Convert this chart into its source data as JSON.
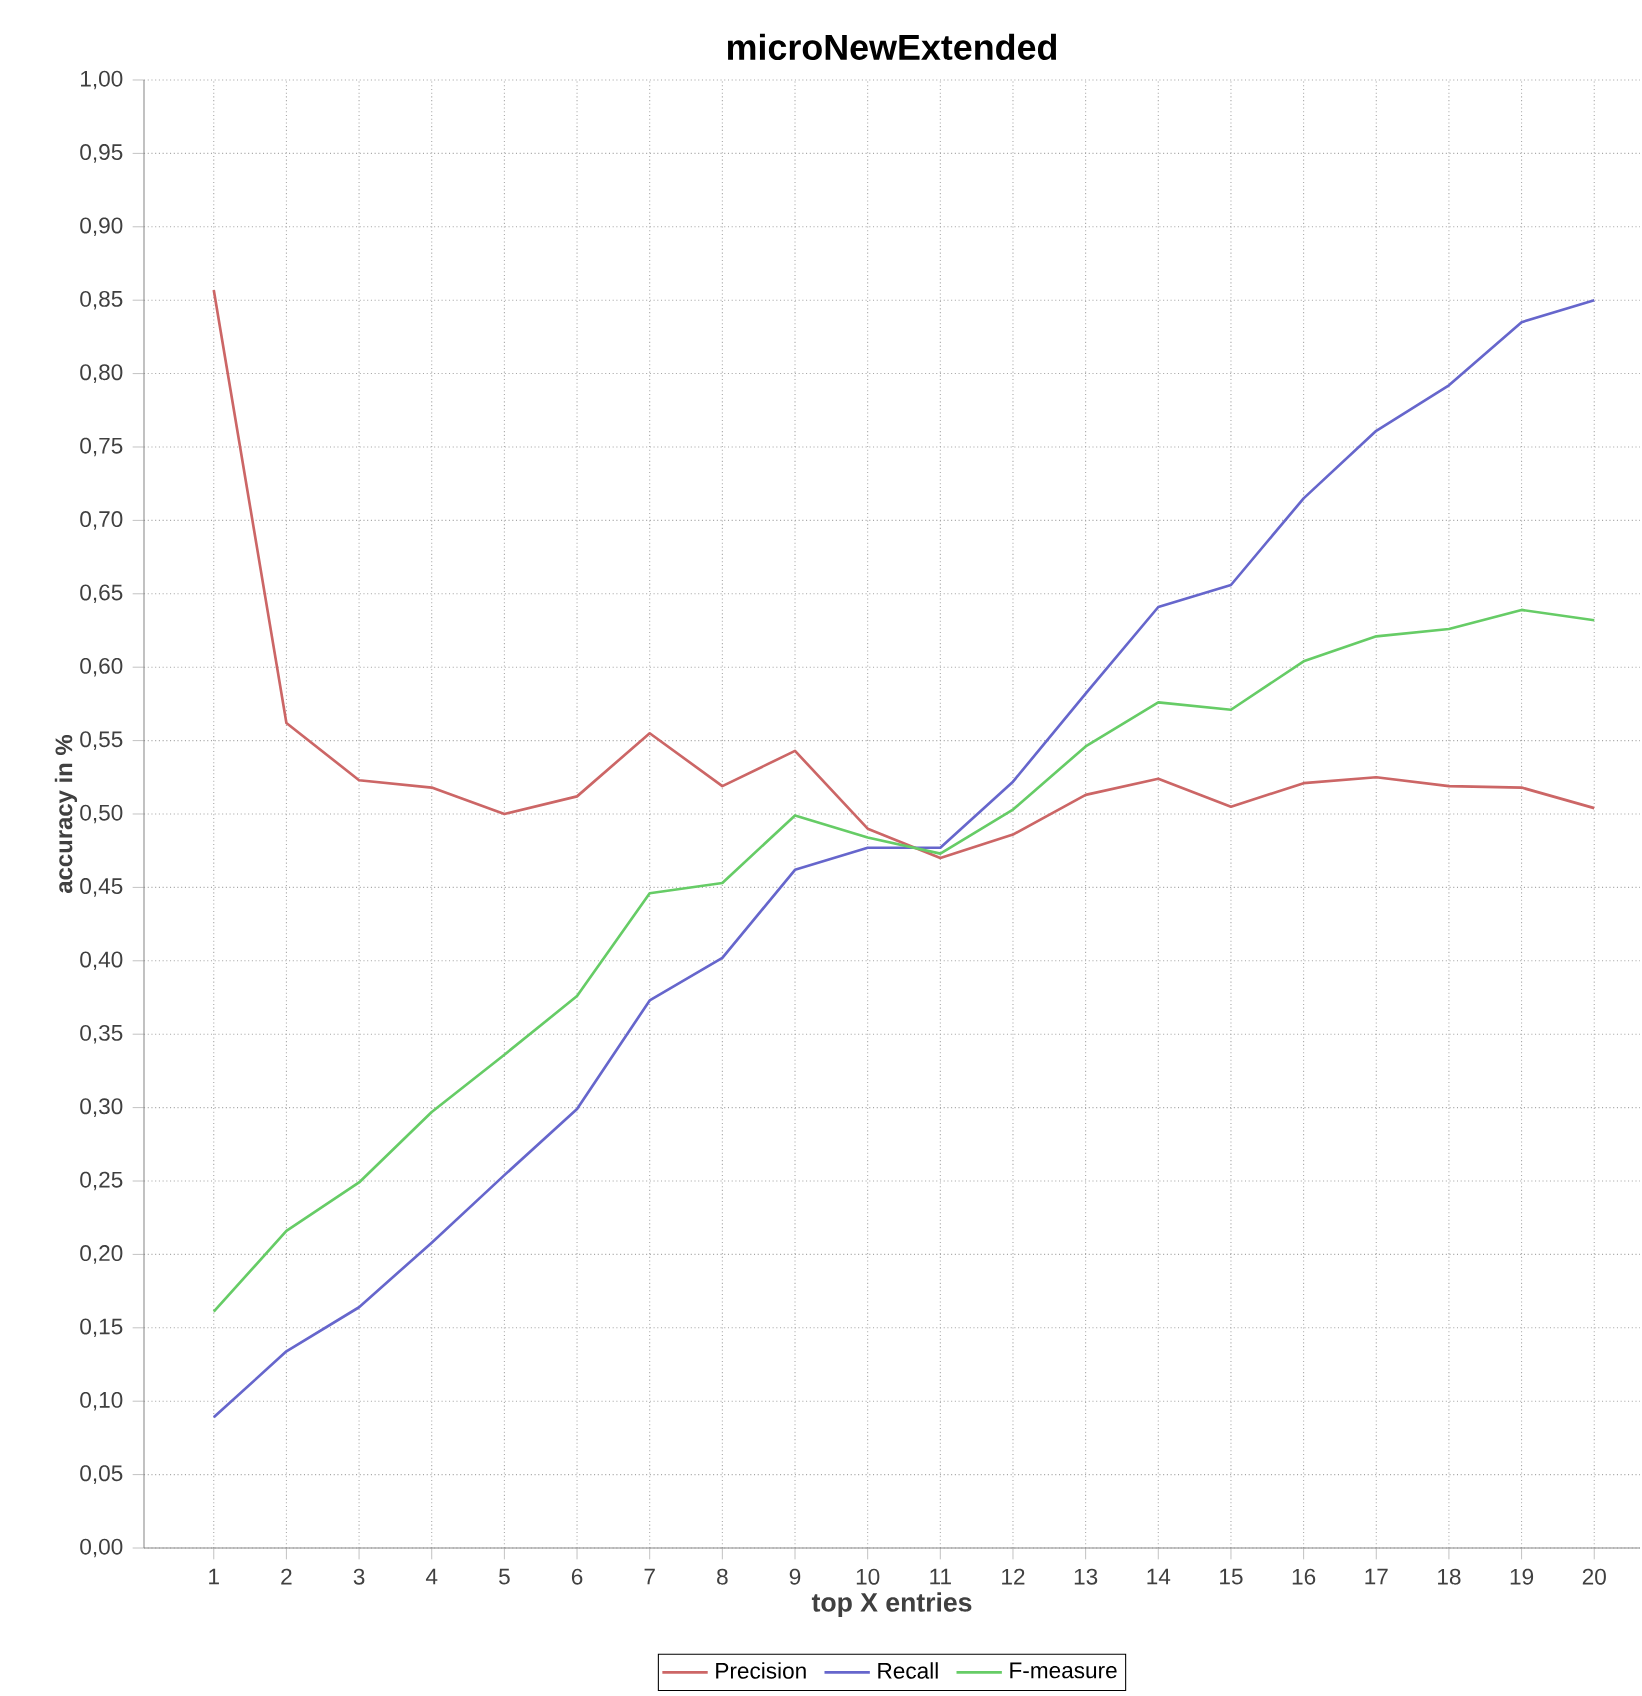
{
  "chart_data": {
    "type": "line",
    "title": "microNewExtended",
    "xlabel": "top X entries",
    "ylabel": "accuracy in %",
    "categories": [
      "1",
      "2",
      "3",
      "4",
      "5",
      "6",
      "7",
      "8",
      "9",
      "10",
      "11",
      "12",
      "13",
      "14",
      "15",
      "16",
      "17",
      "18",
      "19",
      "20"
    ],
    "series": [
      {
        "name": "Precision",
        "color": "#cc6666",
        "values": [
          0.857,
          0.562,
          0.523,
          0.518,
          0.5,
          0.512,
          0.555,
          0.519,
          0.543,
          0.49,
          0.47,
          0.486,
          0.513,
          0.524,
          0.505,
          0.521,
          0.525,
          0.519,
          0.518,
          0.504
        ]
      },
      {
        "name": "Recall",
        "color": "#6666cc",
        "values": [
          0.089,
          0.134,
          0.164,
          0.208,
          0.254,
          0.299,
          0.373,
          0.402,
          0.462,
          0.477,
          0.477,
          0.522,
          0.582,
          0.641,
          0.656,
          0.715,
          0.761,
          0.792,
          0.835,
          0.85
        ]
      },
      {
        "name": "F-measure",
        "color": "#66cc66",
        "values": [
          0.161,
          0.216,
          0.249,
          0.297,
          0.336,
          0.376,
          0.446,
          0.453,
          0.499,
          0.484,
          0.473,
          0.503,
          0.546,
          0.576,
          0.571,
          0.604,
          0.621,
          0.626,
          0.639,
          0.632
        ]
      }
    ],
    "ylim": [
      0,
      1
    ],
    "yticks": [
      {
        "value": 0,
        "label": "0,00"
      },
      {
        "value": 0.05,
        "label": "0,05"
      },
      {
        "value": 0.1,
        "label": "0,10"
      },
      {
        "value": 0.15,
        "label": "0,15"
      },
      {
        "value": 0.2,
        "label": "0,20"
      },
      {
        "value": 0.25,
        "label": "0,25"
      },
      {
        "value": 0.3,
        "label": "0,30"
      },
      {
        "value": 0.35,
        "label": "0,35"
      },
      {
        "value": 0.4,
        "label": "0,40"
      },
      {
        "value": 0.45,
        "label": "0,45"
      },
      {
        "value": 0.5,
        "label": "0,50"
      },
      {
        "value": 0.55,
        "label": "0,55"
      },
      {
        "value": 0.6,
        "label": "0,60"
      },
      {
        "value": 0.65,
        "label": "0,65"
      },
      {
        "value": 0.7,
        "label": "0,70"
      },
      {
        "value": 0.75,
        "label": "0,75"
      },
      {
        "value": 0.8,
        "label": "0,80"
      },
      {
        "value": 0.85,
        "label": "0,85"
      },
      {
        "value": 0.9,
        "label": "0,90"
      },
      {
        "value": 0.95,
        "label": "0,95"
      },
      {
        "value": 1,
        "label": "1,00"
      }
    ],
    "grid": true,
    "legend": "bottom",
    "marker": "none",
    "line_style": "solid"
  }
}
